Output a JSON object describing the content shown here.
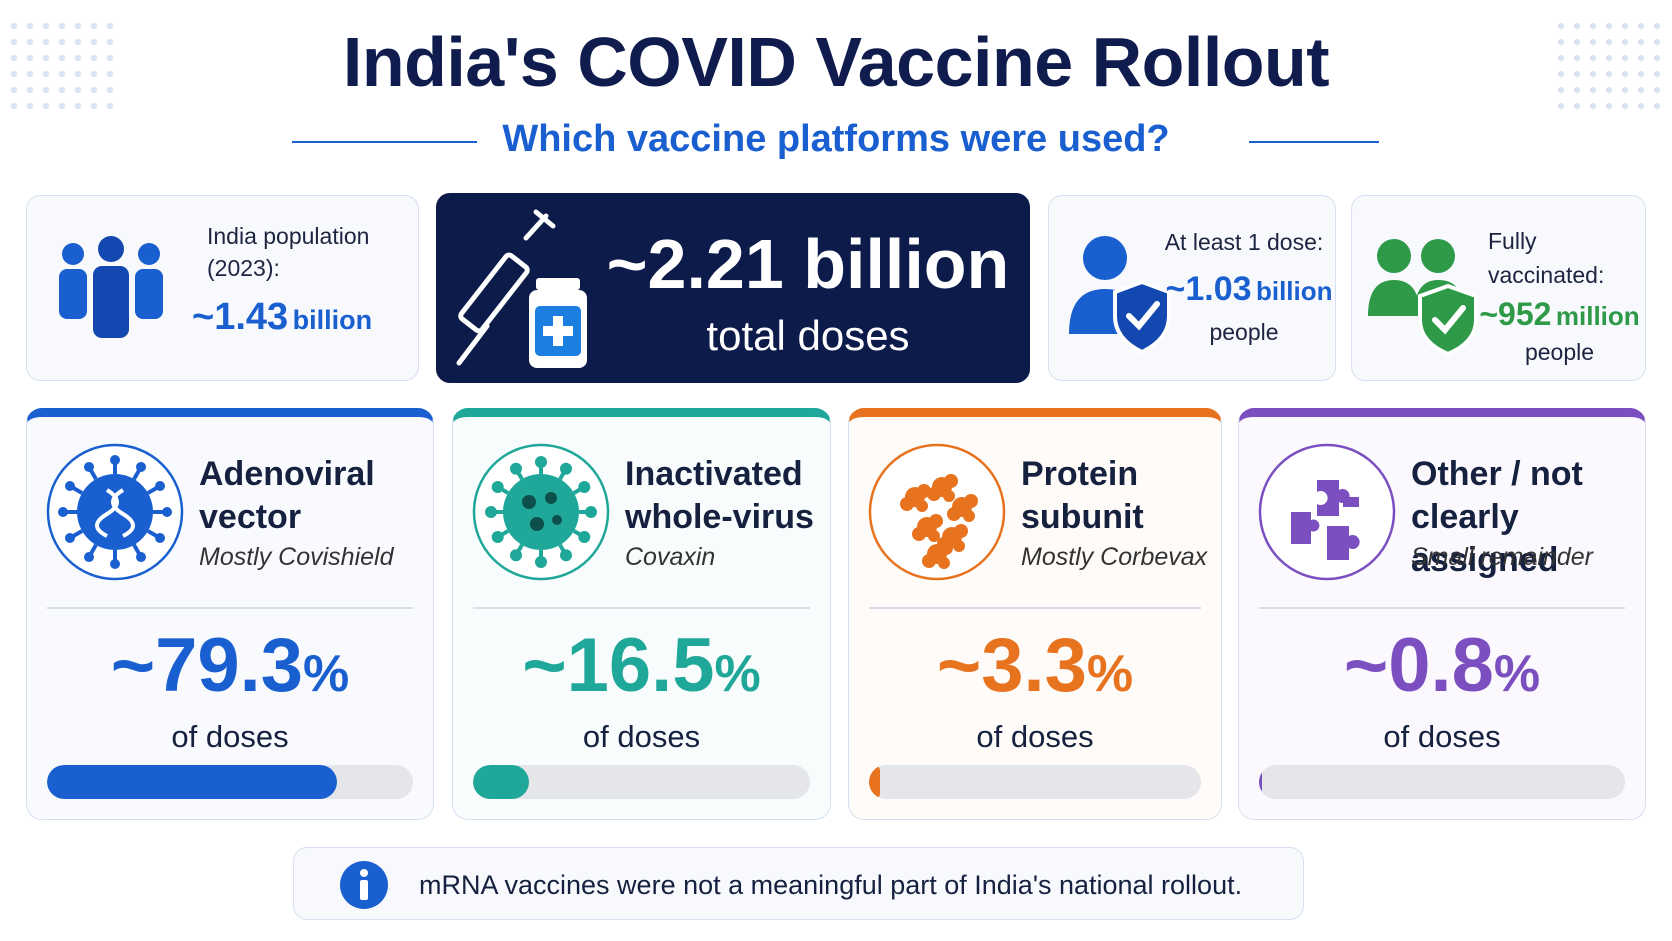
{
  "header": {
    "title": "India's COVID Vaccine Rollout",
    "subtitle": "Which vaccine platforms were used?"
  },
  "stats": [
    {
      "label": "India population (2023):",
      "value": "~1.43",
      "unit": "billion"
    },
    {
      "value": "~2.21 billion",
      "label": "total doses"
    },
    {
      "label": "At least 1 dose:",
      "value": "~1.03",
      "unit": "billion",
      "caption": "people"
    },
    {
      "label": "Fully vaccinated:",
      "value": "~952",
      "unit": "million",
      "caption": "people"
    }
  ],
  "platforms": [
    {
      "name": "Adenoviral vector",
      "note": "Mostly Covishield",
      "prefix": "~",
      "share": 79.3,
      "unit": "%",
      "caption": "of doses",
      "color": "#1a5fd0"
    },
    {
      "name": "Inactivated whole-virus",
      "note": "Covaxin",
      "prefix": "~",
      "share": 16.5,
      "unit": "%",
      "caption": "of doses",
      "color": "#1fa89a"
    },
    {
      "name": "Protein subunit",
      "note": "Mostly Corbevax",
      "prefix": "~",
      "share": 3.3,
      "unit": "%",
      "caption": "of doses",
      "color": "#e8731f"
    },
    {
      "name": "Other / not clearly assigned",
      "note": "Small remainder",
      "prefix": "~",
      "share": 0.8,
      "unit": "%",
      "caption": "of doses",
      "color": "#7b4fc0"
    }
  ],
  "footnote": "mRNA vaccines were not a meaningful part of India's national rollout."
}
